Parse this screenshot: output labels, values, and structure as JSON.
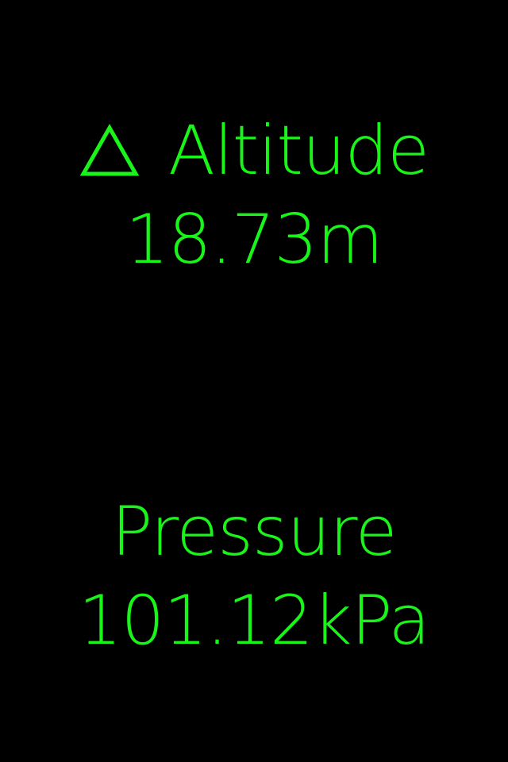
{
  "colors": {
    "background": "#000000",
    "text": "#19f519"
  },
  "altitude": {
    "icon": "delta-triangle-icon",
    "label": "Altitude",
    "value": "18.73m"
  },
  "pressure": {
    "label": "Pressure",
    "value": "101.12kPa"
  }
}
